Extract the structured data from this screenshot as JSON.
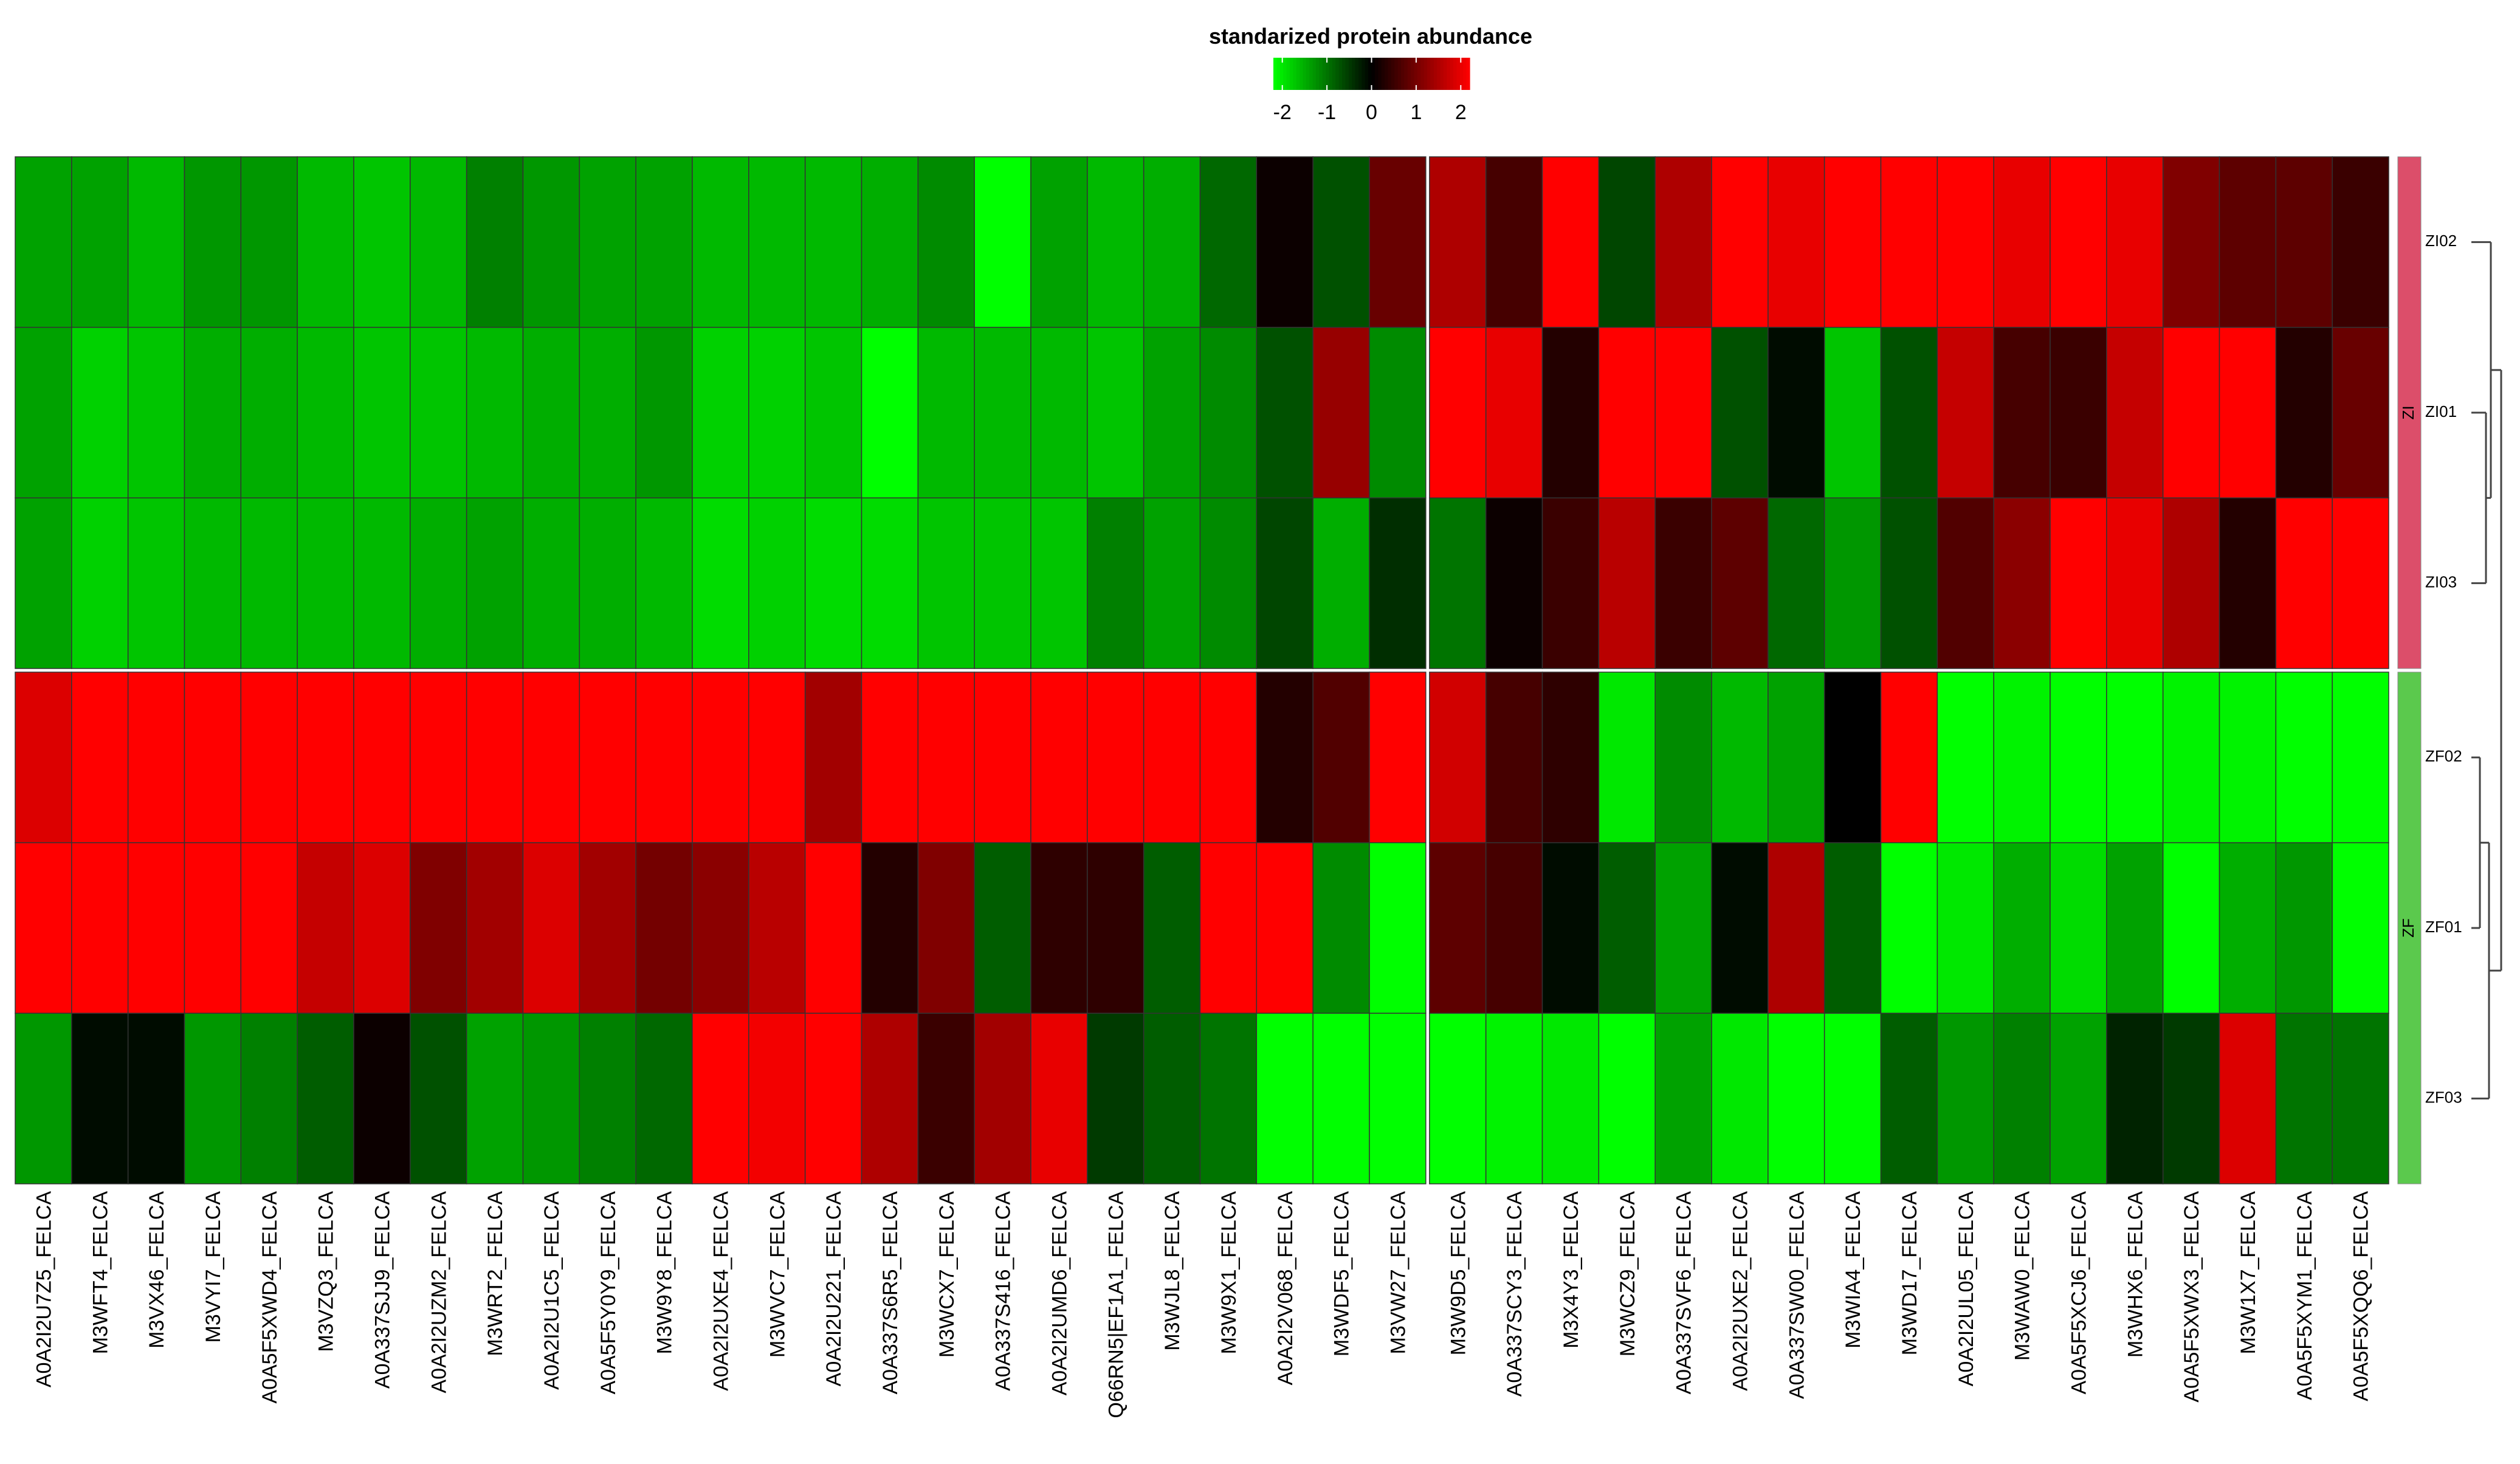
{
  "chart_data": {
    "type": "heatmap",
    "legend": {
      "title": "standarized protein abundance",
      "ticks": [
        "-2",
        "-1",
        "0",
        "1",
        "2"
      ],
      "range": [
        -2.2,
        2.2
      ],
      "colors": {
        "low": "#00ff00",
        "mid": "#000000",
        "high": "#ff0000"
      }
    },
    "columns": [
      "A0A2I2U7Z5_FELCA",
      "M3WFT4_FELCA",
      "M3VX46_FELCA",
      "M3VYI7_FELCA",
      "A0A5F5XWD4_FELCA",
      "M3VZQ3_FELCA",
      "A0A337SJJ9_FELCA",
      "A0A2I2UZM2_FELCA",
      "M3WRT2_FELCA",
      "A0A2I2U1C5_FELCA",
      "A0A5F5Y0Y9_FELCA",
      "M3W9Y8_FELCA",
      "A0A2I2UXE4_FELCA",
      "M3WVC7_FELCA",
      "A0A2I2U221_FELCA",
      "A0A337S6R5_FELCA",
      "M3WCX7_FELCA",
      "A0A337S416_FELCA",
      "A0A2I2UMD6_FELCA",
      "Q66RN5|EF1A1_FELCA",
      "M3WJL8_FELCA",
      "M3W9X1_FELCA",
      "A0A2I2V068_FELCA",
      "M3WDF5_FELCA",
      "M3VW27_FELCA",
      "M3W9D5_FELCA",
      "A0A337SCY3_FELCA",
      "M3X4Y3_FELCA",
      "M3WCZ9_FELCA",
      "A0A337SVF6_FELCA",
      "A0A2I2UXE2_FELCA",
      "A0A337SW00_FELCA",
      "M3WIA4_FELCA",
      "M3WD17_FELCA",
      "A0A2I2UL05_FELCA",
      "M3WAW0_FELCA",
      "A0A5F5XCJ6_FELCA",
      "M3WHX6_FELCA",
      "A0A5F5XWX3_FELCA",
      "M3W1X7_FELCA",
      "A0A5F5XYM1_FELCA",
      "A0A5F5XQQ6_FELCA"
    ],
    "rows": [
      "ZI02",
      "ZI01",
      "ZI03",
      "ZF02",
      "ZF01",
      "ZF03"
    ],
    "row_groups": [
      {
        "label": "ZI",
        "rows": [
          "ZI02",
          "ZI01",
          "ZI03"
        ],
        "color": "#dc4e6a"
      },
      {
        "label": "ZF",
        "rows": [
          "ZF02",
          "ZF01",
          "ZF03"
        ],
        "color": "#5bc94d"
      }
    ],
    "column_split_after": 25,
    "row_split_after": 3,
    "values": [
      [
        -1.4,
        -1.4,
        -1.6,
        -1.3,
        -1.3,
        -1.6,
        -1.7,
        -1.6,
        -1.1,
        -1.3,
        -1.4,
        -1.4,
        -1.6,
        -1.6,
        -1.6,
        -1.5,
        -1.2,
        -2.2,
        -1.4,
        -1.6,
        -1.5,
        -0.9,
        0.1,
        -0.7,
        0.9,
        1.5,
        0.6,
        2.2,
        -0.6,
        1.5,
        2.2,
        2.0,
        2.2,
        2.2,
        2.2,
        2.0,
        2.2,
        2.0,
        1.1,
        0.8,
        0.8,
        0.5
      ],
      [
        -1.4,
        -1.8,
        -1.7,
        -1.5,
        -1.5,
        -1.6,
        -1.7,
        -1.7,
        -1.6,
        -1.5,
        -1.5,
        -1.3,
        -1.8,
        -1.8,
        -1.7,
        -2.2,
        -1.6,
        -1.6,
        -1.6,
        -1.7,
        -1.4,
        -1.2,
        -0.7,
        1.3,
        -1.2,
        2.2,
        2.0,
        0.3,
        2.2,
        2.2,
        -0.7,
        -0.1,
        -1.7,
        -0.7,
        1.7,
        0.6,
        0.5,
        1.7,
        2.2,
        2.2,
        0.3,
        0.9
      ],
      [
        -1.4,
        -1.8,
        -1.7,
        -1.6,
        -1.6,
        -1.6,
        -1.6,
        -1.5,
        -1.4,
        -1.5,
        -1.5,
        -1.6,
        -1.9,
        -1.8,
        -1.9,
        -1.9,
        -1.7,
        -1.7,
        -1.7,
        -1.1,
        -1.4,
        -1.2,
        -0.6,
        -1.5,
        -0.4,
        -1.0,
        0.1,
        0.5,
        1.6,
        0.5,
        0.8,
        -0.9,
        -1.3,
        -0.7,
        0.7,
        1.2,
        2.2,
        2.0,
        1.5,
        0.3,
        2.2,
        2.2
      ],
      [
        1.9,
        2.2,
        2.2,
        2.2,
        2.2,
        2.2,
        2.2,
        2.2,
        2.2,
        2.2,
        2.2,
        2.2,
        2.2,
        2.2,
        1.4,
        2.2,
        2.2,
        2.2,
        2.2,
        2.2,
        2.2,
        2.2,
        0.3,
        0.7,
        2.2,
        1.8,
        0.6,
        0.4,
        -2.0,
        -1.2,
        -1.6,
        -1.4,
        0.0,
        2.2,
        -2.2,
        -2.1,
        -2.2,
        -2.2,
        -2.1,
        -2.1,
        -2.2,
        -2.2
      ],
      [
        2.2,
        2.2,
        2.2,
        2.2,
        2.2,
        1.7,
        1.9,
        1.1,
        1.4,
        1.9,
        1.4,
        1.0,
        1.2,
        1.6,
        2.2,
        0.3,
        1.1,
        -0.8,
        0.4,
        0.4,
        -0.8,
        2.2,
        2.2,
        -1.2,
        -2.2,
        0.8,
        0.6,
        -0.1,
        -0.8,
        -1.4,
        -0.1,
        1.5,
        -0.8,
        -2.2,
        -2.0,
        -1.5,
        -1.9,
        -1.4,
        -2.2,
        -1.5,
        -1.3,
        -2.2
      ],
      [
        -1.3,
        -0.1,
        -0.1,
        -1.3,
        -1.1,
        -0.8,
        0.1,
        -0.7,
        -1.4,
        -1.3,
        -1.1,
        -0.9,
        2.2,
        2.1,
        2.2,
        1.5,
        0.5,
        1.4,
        2.0,
        -0.5,
        -0.8,
        -1.0,
        -2.2,
        -2.2,
        -2.2,
        -2.2,
        -2.1,
        -2.0,
        -2.2,
        -1.4,
        -2.0,
        -2.2,
        -2.2,
        -0.8,
        -1.3,
        -1.1,
        -1.4,
        -0.3,
        -0.5,
        1.9,
        -1.0,
        -1.0
      ]
    ]
  }
}
